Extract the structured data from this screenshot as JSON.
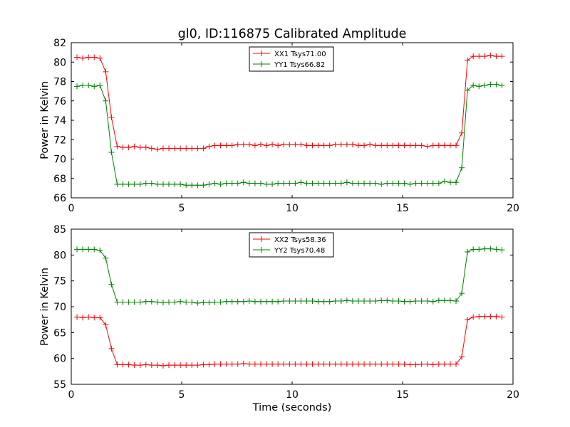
{
  "title": "gl0, ID:116875 Calibrated Amplitude",
  "chart_data": [
    {
      "type": "line",
      "ylabel": "Power in Kelvin",
      "xlabel": "",
      "xlim": [
        0,
        20
      ],
      "ylim": [
        66,
        82
      ],
      "xticks": [
        "0",
        "5",
        "10",
        "15",
        "20"
      ],
      "yticks": [
        "66",
        "68",
        "70",
        "72",
        "74",
        "76",
        "78",
        "80",
        "82"
      ],
      "legend_position": "top-center",
      "series": [
        {
          "name": "XX1 Tsys71.00",
          "color": "#ff0000",
          "x": [
            0.26,
            0.52,
            0.78,
            1.04,
            1.3,
            1.56,
            1.82,
            2.08,
            2.34,
            2.6,
            2.86,
            3.12,
            3.38,
            3.64,
            3.9,
            4.16,
            4.42,
            4.68,
            4.94,
            5.2,
            5.46,
            5.72,
            5.98,
            6.24,
            6.5,
            6.76,
            7.02,
            7.28,
            7.54,
            7.8,
            8.06,
            8.32,
            8.58,
            8.84,
            9.1,
            9.36,
            9.62,
            9.88,
            10.14,
            10.4,
            10.66,
            10.92,
            11.18,
            11.44,
            11.7,
            11.96,
            12.22,
            12.48,
            12.74,
            13.0,
            13.26,
            13.52,
            13.78,
            14.04,
            14.3,
            14.56,
            14.82,
            15.08,
            15.34,
            15.6,
            15.86,
            16.12,
            16.38,
            16.64,
            16.9,
            17.16,
            17.42,
            17.68,
            17.94,
            18.2,
            18.46,
            18.72,
            18.98,
            19.24,
            19.5
          ],
          "y": [
            80.5,
            80.4,
            80.5,
            80.5,
            80.4,
            79.0,
            74.3,
            71.3,
            71.2,
            71.2,
            71.3,
            71.2,
            71.2,
            71.1,
            71.0,
            71.1,
            71.1,
            71.1,
            71.1,
            71.1,
            71.1,
            71.1,
            71.1,
            71.3,
            71.4,
            71.4,
            71.4,
            71.4,
            71.5,
            71.5,
            71.5,
            71.4,
            71.5,
            71.4,
            71.5,
            71.4,
            71.5,
            71.5,
            71.5,
            71.5,
            71.4,
            71.4,
            71.4,
            71.4,
            71.4,
            71.5,
            71.5,
            71.5,
            71.5,
            71.4,
            71.4,
            71.5,
            71.4,
            71.4,
            71.4,
            71.4,
            71.4,
            71.4,
            71.4,
            71.4,
            71.4,
            71.3,
            71.4,
            71.4,
            71.4,
            71.4,
            71.4,
            72.7,
            80.2,
            80.6,
            80.6,
            80.6,
            80.7,
            80.6,
            80.6
          ]
        },
        {
          "name": "YY1 Tsys66.82",
          "color": "#008000",
          "x": [
            0.26,
            0.52,
            0.78,
            1.04,
            1.3,
            1.56,
            1.82,
            2.08,
            2.34,
            2.6,
            2.86,
            3.12,
            3.38,
            3.64,
            3.9,
            4.16,
            4.42,
            4.68,
            4.94,
            5.2,
            5.46,
            5.72,
            5.98,
            6.24,
            6.5,
            6.76,
            7.02,
            7.28,
            7.54,
            7.8,
            8.06,
            8.32,
            8.58,
            8.84,
            9.1,
            9.36,
            9.62,
            9.88,
            10.14,
            10.4,
            10.66,
            10.92,
            11.18,
            11.44,
            11.7,
            11.96,
            12.22,
            12.48,
            12.74,
            13.0,
            13.26,
            13.52,
            13.78,
            14.04,
            14.3,
            14.56,
            14.82,
            15.08,
            15.34,
            15.6,
            15.86,
            16.12,
            16.38,
            16.64,
            16.9,
            17.16,
            17.42,
            17.68,
            17.94,
            18.2,
            18.46,
            18.72,
            18.98,
            19.24,
            19.5
          ],
          "y": [
            77.5,
            77.6,
            77.6,
            77.5,
            77.6,
            76.0,
            70.7,
            67.4,
            67.4,
            67.4,
            67.4,
            67.4,
            67.5,
            67.5,
            67.4,
            67.4,
            67.4,
            67.4,
            67.4,
            67.3,
            67.3,
            67.3,
            67.3,
            67.4,
            67.5,
            67.4,
            67.5,
            67.5,
            67.5,
            67.6,
            67.5,
            67.5,
            67.5,
            67.4,
            67.4,
            67.5,
            67.5,
            67.5,
            67.5,
            67.6,
            67.5,
            67.5,
            67.5,
            67.5,
            67.5,
            67.5,
            67.5,
            67.6,
            67.5,
            67.5,
            67.5,
            67.5,
            67.5,
            67.4,
            67.5,
            67.5,
            67.5,
            67.5,
            67.4,
            67.5,
            67.5,
            67.5,
            67.5,
            67.5,
            67.7,
            67.6,
            67.6,
            69.1,
            77.1,
            77.6,
            77.5,
            77.6,
            77.7,
            77.7,
            77.6
          ]
        }
      ]
    },
    {
      "type": "line",
      "ylabel": "Power in Kelvin",
      "xlabel": "Time (seconds)",
      "xlim": [
        0,
        20
      ],
      "ylim": [
        55,
        85
      ],
      "xticks": [
        "0",
        "5",
        "10",
        "15",
        "20"
      ],
      "yticks": [
        "55",
        "60",
        "65",
        "70",
        "75",
        "80",
        "85"
      ],
      "legend_position": "top-center",
      "series": [
        {
          "name": "XX2 Tsys58.36",
          "color": "#ff0000",
          "x": [
            0.26,
            0.52,
            0.78,
            1.04,
            1.3,
            1.56,
            1.82,
            2.08,
            2.34,
            2.6,
            2.86,
            3.12,
            3.38,
            3.64,
            3.9,
            4.16,
            4.42,
            4.68,
            4.94,
            5.2,
            5.46,
            5.72,
            5.98,
            6.24,
            6.5,
            6.76,
            7.02,
            7.28,
            7.54,
            7.8,
            8.06,
            8.32,
            8.58,
            8.84,
            9.1,
            9.36,
            9.62,
            9.88,
            10.14,
            10.4,
            10.66,
            10.92,
            11.18,
            11.44,
            11.7,
            11.96,
            12.22,
            12.48,
            12.74,
            13.0,
            13.26,
            13.52,
            13.78,
            14.04,
            14.3,
            14.56,
            14.82,
            15.08,
            15.34,
            15.6,
            15.86,
            16.12,
            16.38,
            16.64,
            16.9,
            17.16,
            17.42,
            17.68,
            17.94,
            18.2,
            18.46,
            18.72,
            18.98,
            19.24,
            19.5
          ],
          "y": [
            68.0,
            67.9,
            68.0,
            67.9,
            67.9,
            66.5,
            61.9,
            58.8,
            58.8,
            58.8,
            58.7,
            58.7,
            58.8,
            58.7,
            58.7,
            58.6,
            58.7,
            58.7,
            58.7,
            58.7,
            58.7,
            58.7,
            58.8,
            58.8,
            58.9,
            58.9,
            58.9,
            58.9,
            58.9,
            59.0,
            58.9,
            58.9,
            58.9,
            58.9,
            58.9,
            58.9,
            58.9,
            58.9,
            58.9,
            58.9,
            58.9,
            58.9,
            58.9,
            58.9,
            58.9,
            58.9,
            58.9,
            58.9,
            58.9,
            58.9,
            58.9,
            58.9,
            58.9,
            58.9,
            58.9,
            58.9,
            58.9,
            58.9,
            58.8,
            58.8,
            58.9,
            58.9,
            58.8,
            58.9,
            58.9,
            58.9,
            58.9,
            60.3,
            67.5,
            68.0,
            68.1,
            68.1,
            68.1,
            68.1,
            68.0
          ]
        },
        {
          "name": "YY2 Tsys70.48",
          "color": "#008000",
          "x": [
            0.26,
            0.52,
            0.78,
            1.04,
            1.3,
            1.56,
            1.82,
            2.08,
            2.34,
            2.6,
            2.86,
            3.12,
            3.38,
            3.64,
            3.9,
            4.16,
            4.42,
            4.68,
            4.94,
            5.2,
            5.46,
            5.72,
            5.98,
            6.24,
            6.5,
            6.76,
            7.02,
            7.28,
            7.54,
            7.8,
            8.06,
            8.32,
            8.58,
            8.84,
            9.1,
            9.36,
            9.62,
            9.88,
            10.14,
            10.4,
            10.66,
            10.92,
            11.18,
            11.44,
            11.7,
            11.96,
            12.22,
            12.48,
            12.74,
            13.0,
            13.26,
            13.52,
            13.78,
            14.04,
            14.3,
            14.56,
            14.82,
            15.08,
            15.34,
            15.6,
            15.86,
            16.12,
            16.38,
            16.64,
            16.9,
            17.16,
            17.42,
            17.68,
            17.94,
            18.2,
            18.46,
            18.72,
            18.98,
            19.24,
            19.5
          ],
          "y": [
            81.1,
            81.1,
            81.1,
            81.1,
            80.9,
            79.4,
            74.3,
            70.9,
            70.9,
            70.9,
            70.9,
            70.9,
            71.0,
            71.0,
            70.9,
            70.8,
            70.9,
            70.9,
            71.0,
            70.9,
            70.9,
            70.7,
            70.8,
            70.8,
            70.9,
            70.9,
            71.0,
            71.0,
            71.0,
            71.0,
            71.1,
            71.0,
            71.0,
            71.0,
            71.0,
            71.0,
            71.1,
            71.1,
            71.1,
            71.1,
            71.1,
            71.1,
            71.0,
            71.0,
            71.0,
            71.1,
            71.1,
            71.2,
            71.1,
            71.1,
            71.1,
            71.1,
            71.1,
            71.2,
            71.2,
            71.1,
            71.1,
            71.0,
            71.0,
            71.1,
            71.1,
            71.1,
            71.0,
            71.2,
            71.2,
            71.2,
            71.1,
            72.6,
            80.6,
            81.1,
            81.1,
            81.2,
            81.2,
            81.1,
            81.0
          ]
        }
      ]
    }
  ]
}
